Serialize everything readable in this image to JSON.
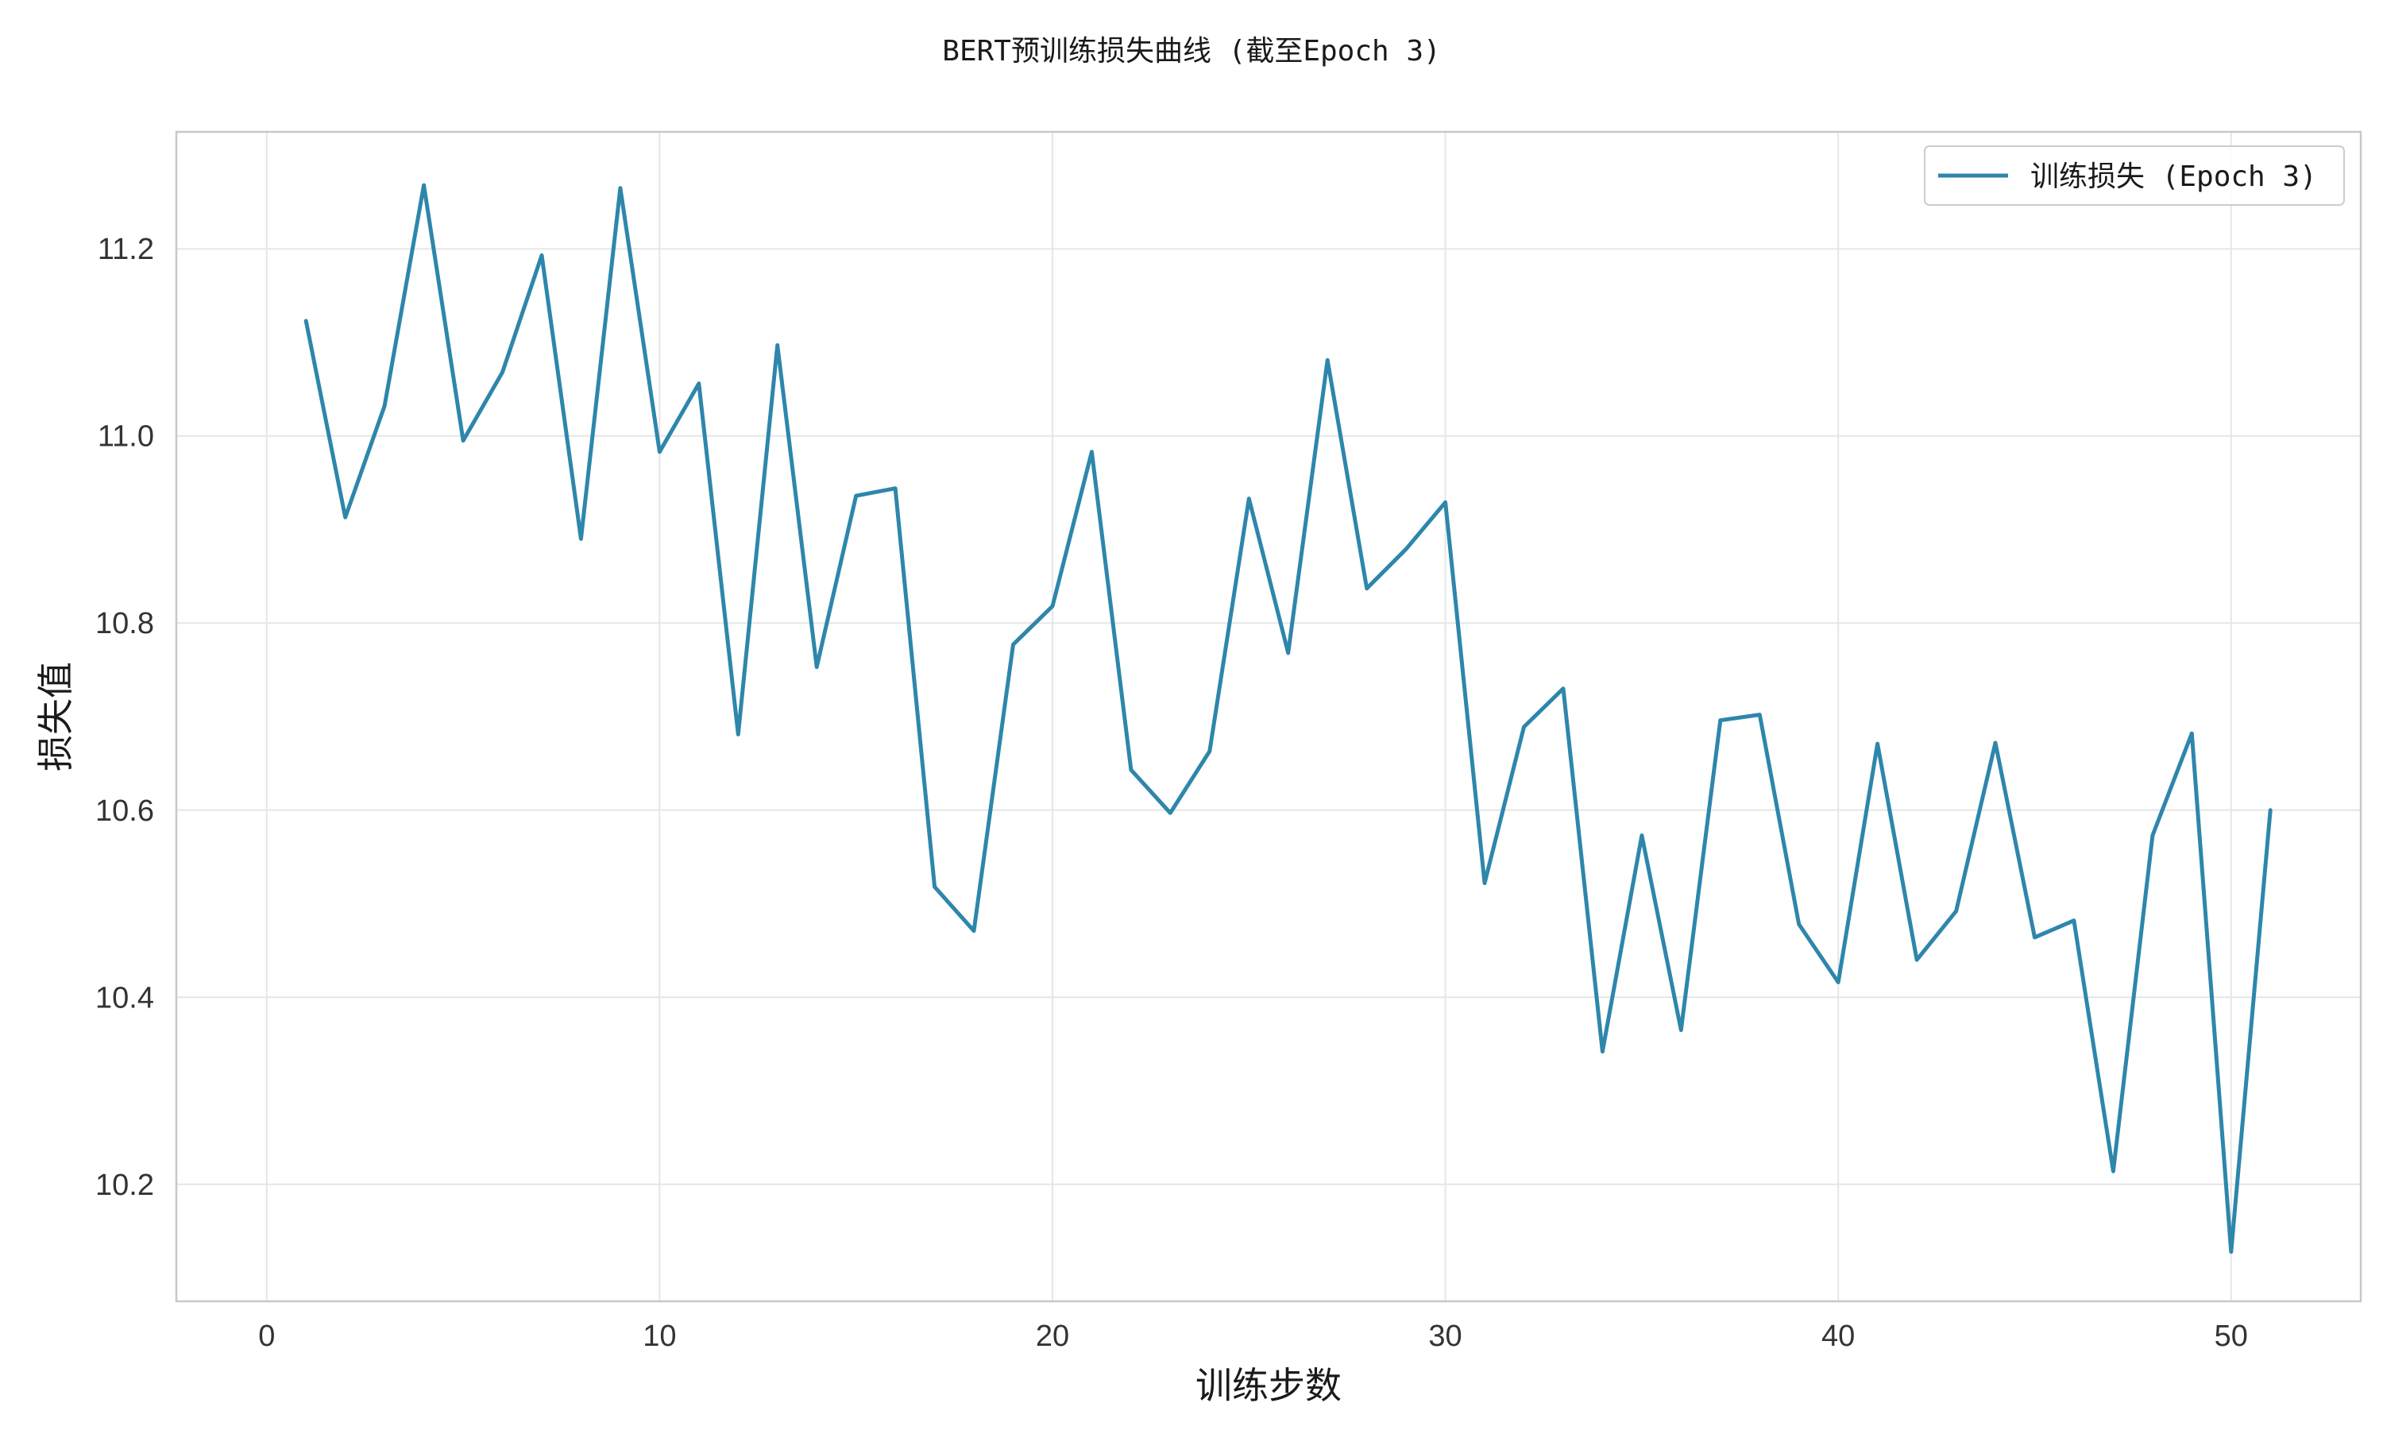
{
  "chart_data": {
    "type": "line",
    "title": "BERT预训练损失曲线 (截至Epoch 3)",
    "xlabel": "训练步数",
    "ylabel": "损失值",
    "xlim": [
      -2.3,
      53.3
    ],
    "ylim": [
      10.075,
      11.325
    ],
    "x_ticks": [
      0,
      10,
      20,
      30,
      40,
      50
    ],
    "y_ticks": [
      10.2,
      10.4,
      10.6,
      10.8,
      11.0,
      11.2
    ],
    "grid": true,
    "legend_position": "top-right",
    "series": [
      {
        "name": "训练损失 (Epoch 3)",
        "color": "#2e86ab",
        "x": [
          1,
          2,
          3,
          4,
          5,
          6,
          7,
          8,
          9,
          10,
          11,
          12,
          13,
          14,
          15,
          16,
          17,
          18,
          19,
          20,
          21,
          22,
          23,
          24,
          25,
          26,
          27,
          28,
          29,
          30,
          31,
          32,
          33,
          34,
          35,
          36,
          37,
          38,
          39,
          40,
          41,
          42,
          43,
          44,
          45,
          46,
          47,
          48,
          49,
          50,
          51
        ],
        "y": [
          11.123,
          10.913,
          11.032,
          11.268,
          10.995,
          11.068,
          11.193,
          10.89,
          11.265,
          10.983,
          11.056,
          10.681,
          11.097,
          10.753,
          10.936,
          10.944,
          10.518,
          10.471,
          10.777,
          10.818,
          10.983,
          10.643,
          10.597,
          10.663,
          10.933,
          10.768,
          11.081,
          10.837,
          10.879,
          10.929,
          10.522,
          10.689,
          10.73,
          10.342,
          10.573,
          10.365,
          10.696,
          10.702,
          10.478,
          10.416,
          10.671,
          10.44,
          10.492,
          10.672,
          10.464,
          10.482,
          10.214,
          10.573,
          10.682,
          10.128,
          10.6
        ]
      }
    ]
  }
}
